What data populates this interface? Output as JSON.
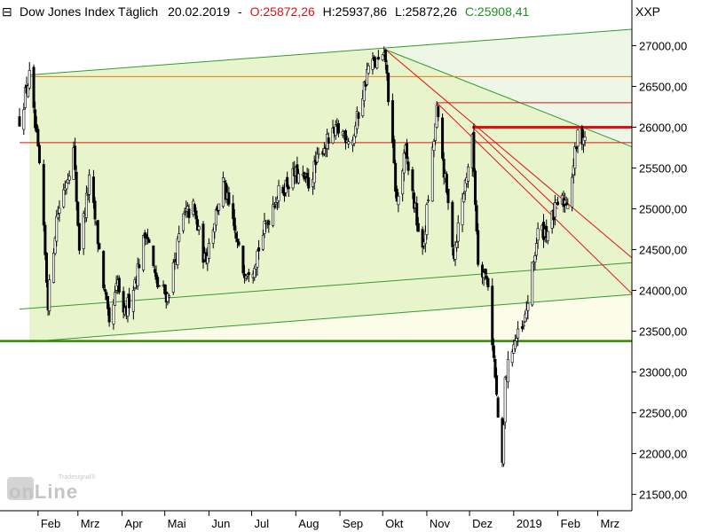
{
  "header": {
    "collapse_symbol": "⊟",
    "instrument": "Dow Jones Index Täglich",
    "date": "20.02.2019",
    "separator": "-",
    "open": "O:25872,26",
    "high": "H:25937,86",
    "low": "L:25872,26",
    "close": "C:25908,41",
    "symbol": "XXP"
  },
  "watermark": {
    "brand_small": "Tradesignal®",
    "brand_main": "onLine"
  },
  "colors": {
    "bull": "#ffffff",
    "bear": "#000000",
    "channel_fill": "#e8f5cc",
    "lower_fill": "#fbfde8",
    "green_line": "#339933",
    "red_line": "#e01010",
    "orange_line": "#e07a1e",
    "support_line": "#2e8b00",
    "down_fill": "#eef7e6",
    "ohlc_open": "#e01010",
    "ohlc_close": "#209020"
  },
  "chart_data": {
    "type": "candlestick",
    "title": "Dow Jones Index Täglich",
    "period": "daily",
    "x_range": [
      "2018-01-19",
      "2019-03-25"
    ],
    "ylim": [
      21300,
      27450
    ],
    "y_ticks": [
      21500,
      22000,
      22500,
      23000,
      23500,
      24000,
      24500,
      25000,
      25500,
      26000,
      26500,
      27000
    ],
    "y_tick_labels": [
      "21500,00",
      "22000,00",
      "22500,00",
      "23000,00",
      "23500,00",
      "24000,00",
      "24500,00",
      "25000,00",
      "25500,00",
      "26000,00",
      "26500,00",
      "27000,00"
    ],
    "x_ticks": [
      {
        "date": "2018-02-01",
        "label": "Feb"
      },
      {
        "date": "2018-03-01",
        "label": "Mrz"
      },
      {
        "date": "2018-04-01",
        "label": "Apr"
      },
      {
        "date": "2018-05-01",
        "label": "Mai"
      },
      {
        "date": "2018-06-01",
        "label": "Jun"
      },
      {
        "date": "2018-07-01",
        "label": "Jul"
      },
      {
        "date": "2018-08-01",
        "label": "Aug"
      },
      {
        "date": "2018-09-01",
        "label": "Sep"
      },
      {
        "date": "2018-10-01",
        "label": "Okt"
      },
      {
        "date": "2018-11-01",
        "label": "Nov"
      },
      {
        "date": "2018-12-01",
        "label": "Dez"
      },
      {
        "date": "2019-01-01",
        "label": "2019"
      },
      {
        "date": "2019-02-01",
        "label": "Feb"
      },
      {
        "date": "2019-03-01",
        "label": "Mrz"
      }
    ],
    "price_path": [
      [
        "2018-01-19",
        26100
      ],
      [
        "2018-01-26",
        26616
      ],
      [
        "2018-02-02",
        25520
      ],
      [
        "2018-02-08",
        23860
      ],
      [
        "2018-02-14",
        24890
      ],
      [
        "2018-02-26",
        25710
      ],
      [
        "2018-03-02",
        24540
      ],
      [
        "2018-03-09",
        25330
      ],
      [
        "2018-03-14",
        24760
      ],
      [
        "2018-03-23",
        23530
      ],
      [
        "2018-03-29",
        24100
      ],
      [
        "2018-04-02",
        23640
      ],
      [
        "2018-04-11",
        24190
      ],
      [
        "2018-04-18",
        24750
      ],
      [
        "2018-04-25",
        24080
      ],
      [
        "2018-05-03",
        23930
      ],
      [
        "2018-05-14",
        24900
      ],
      [
        "2018-05-21",
        25010
      ],
      [
        "2018-05-29",
        24360
      ],
      [
        "2018-06-11",
        25320
      ],
      [
        "2018-06-25",
        24250
      ],
      [
        "2018-07-02",
        24310
      ],
      [
        "2018-07-17",
        25120
      ],
      [
        "2018-07-31",
        25420
      ],
      [
        "2018-08-10",
        25310
      ],
      [
        "2018-08-20",
        25760
      ],
      [
        "2018-08-31",
        25960
      ],
      [
        "2018-09-10",
        25850
      ],
      [
        "2018-09-21",
        26740
      ],
      [
        "2018-10-03",
        26830
      ],
      [
        "2018-10-11",
        25050
      ],
      [
        "2018-10-17",
        25700
      ],
      [
        "2018-10-29",
        24440
      ],
      [
        "2018-11-08",
        26190
      ],
      [
        "2018-11-20",
        24460
      ],
      [
        "2018-11-30",
        25540
      ],
      [
        "2018-12-03",
        25830
      ],
      [
        "2018-12-07",
        24390
      ],
      [
        "2018-12-14",
        24100
      ],
      [
        "2018-12-21",
        22450
      ],
      [
        "2018-12-24",
        21790
      ],
      [
        "2018-12-26",
        22880
      ],
      [
        "2018-12-31",
        23330
      ],
      [
        "2019-01-08",
        23530
      ],
      [
        "2019-01-18",
        24710
      ],
      [
        "2019-01-25",
        24740
      ],
      [
        "2019-02-01",
        25060
      ],
      [
        "2019-02-08",
        25110
      ],
      [
        "2019-02-15",
        25880
      ],
      [
        "2019-02-20",
        25908
      ]
    ],
    "annotations": [
      {
        "type": "line",
        "color": "green",
        "from": [
          "2018-01-26",
          26640
        ],
        "to": [
          "2019-03-25",
          27200
        ]
      },
      {
        "type": "line",
        "color": "green",
        "from": [
          "2018-01-19",
          23770
        ],
        "to": [
          "2019-03-25",
          24340
        ]
      },
      {
        "type": "line",
        "color": "green",
        "from": [
          "2018-01-26",
          23370
        ],
        "to": [
          "2019-03-25",
          23950
        ]
      },
      {
        "type": "line",
        "color": "green",
        "from": [
          "2018-10-03",
          26950
        ],
        "to": [
          "2019-03-25",
          25760
        ]
      },
      {
        "type": "hline",
        "color": "orange",
        "value": 26620,
        "from": "2018-01-26",
        "to": "2019-03-25"
      },
      {
        "type": "hline",
        "color": "red",
        "value": 25810,
        "from": "2018-01-19",
        "to": "2019-03-25"
      },
      {
        "type": "hline",
        "color": "red",
        "value": 26300,
        "from": "2018-11-08",
        "to": "2019-03-25"
      },
      {
        "type": "hline",
        "color": "red_bold",
        "value": 26000,
        "from": "2018-12-03",
        "to": "2019-03-25"
      },
      {
        "type": "line",
        "color": "red",
        "from": [
          "2018-10-03",
          26950
        ],
        "to": [
          "2019-03-25",
          24400
        ]
      },
      {
        "type": "line",
        "color": "red",
        "from": [
          "2018-11-08",
          26300
        ],
        "to": [
          "2019-03-25",
          23960
        ]
      },
      {
        "type": "line",
        "color": "red",
        "from": [
          "2018-12-03",
          26000
        ],
        "to": [
          "2019-02-01",
          25000
        ]
      },
      {
        "type": "hline",
        "color": "support",
        "value": 23380,
        "from": "2018-01-01",
        "to": "2019-03-25"
      }
    ],
    "ohlc_last": {
      "open": 25872.26,
      "high": 25937.86,
      "low": 25872.26,
      "close": 25908.41
    }
  }
}
